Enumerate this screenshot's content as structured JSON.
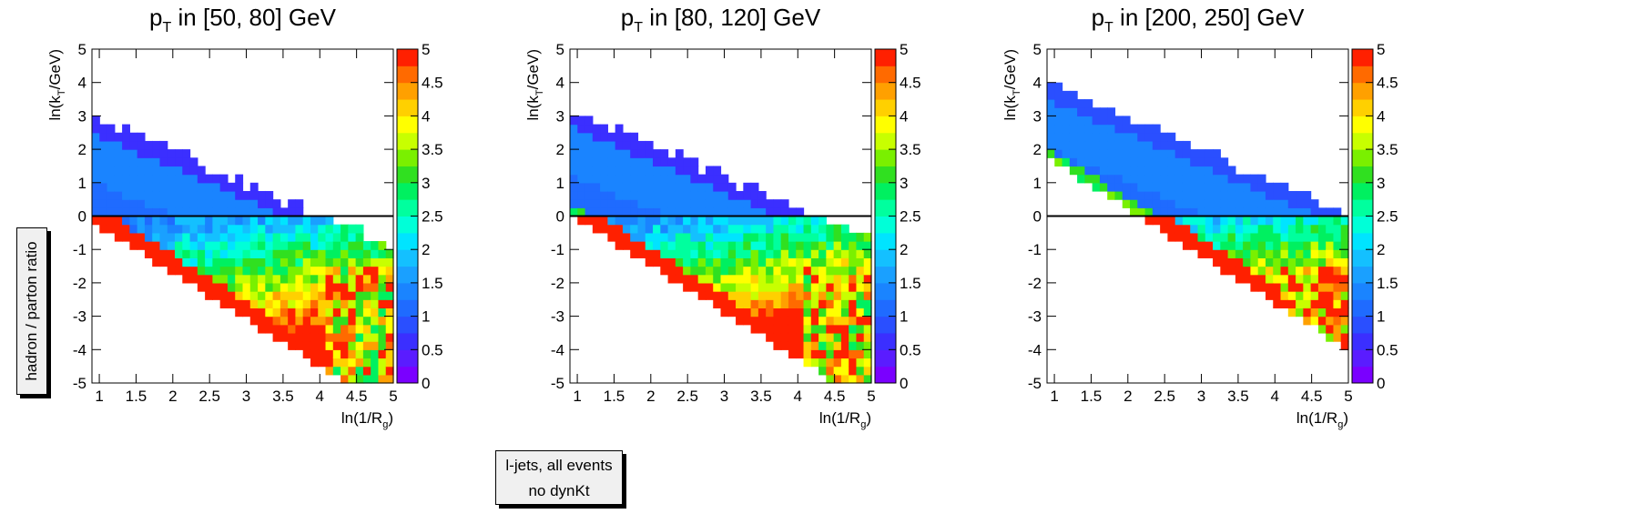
{
  "z_axis_title": "hadron / parton ratio",
  "info_box": {
    "line1": "l-jets, all events",
    "line2": "no dynKt"
  },
  "colors": {
    "palette": [
      "#7a00ff",
      "#5a1cff",
      "#3b2fff",
      "#2a4fff",
      "#1f6bff",
      "#1a84ff",
      "#1aa0ff",
      "#14c0ff",
      "#00e4ff",
      "#00ffd8",
      "#00ff9e",
      "#00f060",
      "#30e020",
      "#7af000",
      "#c8ff00",
      "#ffff00",
      "#ffd000",
      "#ffa000",
      "#ff6a00",
      "#ff2000"
    ],
    "zero_line": "#000000"
  },
  "chart_data": [
    {
      "type": "heatmap",
      "title_main": "p",
      "title_sub": "T",
      "title_rest": " in [50, 80] GeV",
      "xlabel_main": "ln(1/R",
      "xlabel_sub": "g",
      "xlabel_end": ")",
      "ylabel_main": "ln(k",
      "ylabel_sub": "T",
      "ylabel_end": "/GeV)",
      "xlim": [
        0.9,
        5.0
      ],
      "ylim": [
        -5,
        5
      ],
      "zlim": [
        0,
        5
      ],
      "x_ticks": [
        "1",
        "1.5",
        "2",
        "2.5",
        "3",
        "3.5",
        "4",
        "4.5",
        "5"
      ],
      "y_ticks": [
        "-5",
        "-4",
        "-3",
        "-2",
        "-1",
        "0",
        "1",
        "2",
        "3",
        "4",
        "5"
      ],
      "z_ticks": [
        "0",
        "0.5",
        "1",
        "1.5",
        "2",
        "2.5",
        "3",
        "3.5",
        "4",
        "4.5",
        "5"
      ],
      "kt_max_at_x1": 3.0,
      "kt_slope": -0.95,
      "band_extent_below_diagonal": 3.3,
      "x_max_filled": 5.0,
      "ratio_profile": {
        "upper_edge": 0.6,
        "upper_region": 1.0,
        "near_zero_line": 0.7,
        "lower_middle": 2.0,
        "lower_edge": 5.0,
        "high_x_lower": 4.0
      }
    },
    {
      "type": "heatmap",
      "title_main": "p",
      "title_sub": "T",
      "title_rest": " in [80, 120] GeV",
      "xlabel_main": "ln(1/R",
      "xlabel_sub": "g",
      "xlabel_end": ")",
      "ylabel_main": "ln(k",
      "ylabel_sub": "T",
      "ylabel_end": "/GeV)",
      "xlim": [
        0.9,
        5.0
      ],
      "ylim": [
        -5,
        5
      ],
      "zlim": [
        0,
        5
      ],
      "x_ticks": [
        "1",
        "1.5",
        "2",
        "2.5",
        "3",
        "3.5",
        "4",
        "4.5",
        "5"
      ],
      "y_ticks": [
        "-5",
        "-4",
        "-3",
        "-2",
        "-1",
        "0",
        "1",
        "2",
        "3",
        "4",
        "5"
      ],
      "z_ticks": [
        "0",
        "0.5",
        "1",
        "1.5",
        "2",
        "2.5",
        "3",
        "3.5",
        "4",
        "4.5",
        "5"
      ],
      "kt_max_at_x1": 3.2,
      "kt_slope": -0.95,
      "band_extent_below_diagonal": 3.3,
      "x_max_filled": 5.0,
      "ratio_profile": {
        "upper_edge": 0.6,
        "upper_region": 1.0,
        "near_zero_line": 0.8,
        "lower_middle": 2.2,
        "lower_edge": 5.0,
        "high_x_lower": 4.0
      }
    },
    {
      "type": "heatmap",
      "title_main": "p",
      "title_sub": "T",
      "title_rest": " in [200, 250] GeV",
      "xlabel_main": "ln(1/R",
      "xlabel_sub": "g",
      "xlabel_end": ")",
      "ylabel_main": "ln(k",
      "ylabel_sub": "T",
      "ylabel_end": "/GeV)",
      "xlim": [
        0.9,
        5.0
      ],
      "ylim": [
        -5,
        5
      ],
      "zlim": [
        0,
        5
      ],
      "x_ticks": [
        "1",
        "1.5",
        "2",
        "2.5",
        "3",
        "3.5",
        "4",
        "4.5",
        "5"
      ],
      "y_ticks": [
        "-5",
        "-4",
        "-3",
        "-2",
        "-1",
        "0",
        "1",
        "2",
        "3",
        "4",
        "5"
      ],
      "z_ticks": [
        "0",
        "0.5",
        "1",
        "1.5",
        "2",
        "2.5",
        "3",
        "3.5",
        "4",
        "4.5",
        "5"
      ],
      "kt_max_at_x1": 4.0,
      "kt_slope": -0.95,
      "band_extent_below_diagonal": 2.4,
      "x_max_filled": 5.0,
      "ratio_profile": {
        "upper_edge": 0.9,
        "upper_region": 1.0,
        "near_zero_line": 1.0,
        "lower_middle": 2.0,
        "lower_edge": 5.0,
        "high_x_lower": 4.5
      }
    }
  ]
}
